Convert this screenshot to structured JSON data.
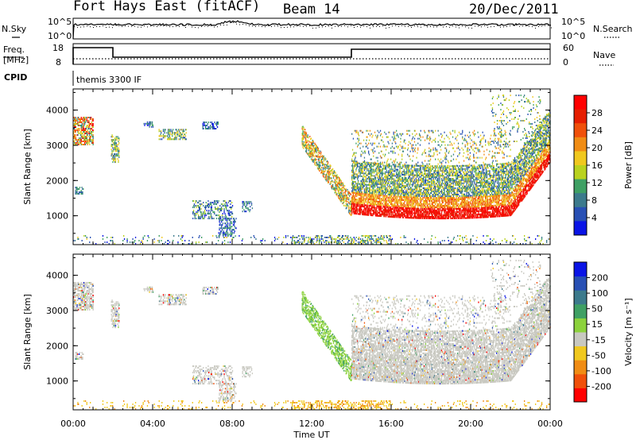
{
  "header": {
    "station": "Fort Hays East (fitACF)",
    "beam": "Beam 14",
    "date": "20/Dec/2011"
  },
  "status_panels": {
    "nsky_label": "N.Sky",
    "nsearch_label": "N.Search",
    "freq_label_1": "Freq.",
    "freq_label_2": "[MHz]",
    "nave_label": "Nave",
    "cpid_label": "CPID",
    "cpid_text": "themis 3300 IF",
    "noise_left_ticks": [
      "10^5",
      "10^0"
    ],
    "noise_right_ticks": [
      "10^5",
      "10^0"
    ],
    "freq_left_ticks": [
      "18",
      "8"
    ],
    "freq_right_ticks": [
      "60",
      "0"
    ]
  },
  "colors": {
    "power_scale": [
      "#0a14e6",
      "#2850b4",
      "#3c7a8c",
      "#3fa064",
      "#b9d21e",
      "#f0c81e",
      "#f08c14",
      "#f0500a",
      "#e61e00",
      "#ff0000"
    ],
    "velocity_scale": [
      "#ff0000",
      "#f0500a",
      "#f08c14",
      "#f0c81e",
      "#c8c8c0",
      "#8cd23c",
      "#3fa064",
      "#3c7a8c",
      "#2850b4",
      "#0a14e6"
    ],
    "ground_scatter": "#c8c8c0"
  },
  "chart_data": [
    {
      "type": "heatmap",
      "title": "",
      "xlabel": "Time UT",
      "ylabel": "Slant Range [km]",
      "xticks": [
        "00:00",
        "04:00",
        "08:00",
        "12:00",
        "16:00",
        "20:00",
        "00:00"
      ],
      "xlim_hours": [
        0,
        24
      ],
      "yticks": [
        1000,
        2000,
        3000,
        4000
      ],
      "ylim": [
        180,
        4600
      ],
      "colorbar": {
        "label": "Power [dB]",
        "ticks": [
          "4",
          "8",
          "12",
          "16",
          "20",
          "24",
          "28"
        ],
        "range": [
          0,
          30
        ]
      },
      "features": [
        {
          "name": "early cluster",
          "t_start": 0.0,
          "t_end": 1.0,
          "range_start": 3000,
          "range_end": 3800,
          "level": "mid-high"
        },
        {
          "name": "patches 03-07",
          "t_start": 3.5,
          "t_end": 7.3,
          "range_start": 3100,
          "range_end": 3600,
          "level": "low"
        },
        {
          "name": "low-range scatter",
          "t_start": 6.0,
          "t_end": 9.0,
          "range_start": 400,
          "range_end": 1400,
          "level": "low"
        },
        {
          "name": "descending band",
          "t_start": 11.5,
          "t_end": 14.0,
          "range_start": 1100,
          "range_end": 3200,
          "level": "mid"
        },
        {
          "name": "main ground band",
          "t_start": 14.0,
          "t_end": 24.0,
          "range_start": 900,
          "range_end": 2600,
          "level": "high"
        },
        {
          "name": "upper sporadic",
          "t_start": 14.0,
          "t_end": 22.0,
          "range_start": 1800,
          "range_end": 3500,
          "level": "low-mid"
        }
      ]
    },
    {
      "type": "heatmap",
      "title": "",
      "xlabel": "Time UT",
      "ylabel": "Slant Range [km]",
      "xticks": [
        "00:00",
        "04:00",
        "08:00",
        "12:00",
        "16:00",
        "20:00",
        "00:00"
      ],
      "xlim_hours": [
        0,
        24
      ],
      "yticks": [
        1000,
        2000,
        3000,
        4000
      ],
      "ylim": [
        180,
        4600
      ],
      "colorbar": {
        "label": "Velocity [m s⁻¹]",
        "ticks": [
          "200",
          "100",
          "50",
          "15",
          "-15",
          "-50",
          "-100",
          "-200"
        ],
        "range": [
          -250,
          250
        ]
      },
      "features": [
        {
          "name": "ground scatter main band",
          "t_start": 14.0,
          "t_end": 24.0,
          "range_start": 900,
          "range_end": 2600,
          "velocity": "~0 (grey)"
        },
        {
          "name": "descending band",
          "t_start": 11.5,
          "t_end": 14.0,
          "range_start": 1100,
          "range_end": 3200,
          "velocity": "15 to 50 (green)"
        },
        {
          "name": "near-range scatter",
          "t_start": 11.0,
          "t_end": 16.0,
          "range_start": 200,
          "range_end": 400,
          "velocity": "-15 to -50 (orange)"
        }
      ]
    }
  ]
}
